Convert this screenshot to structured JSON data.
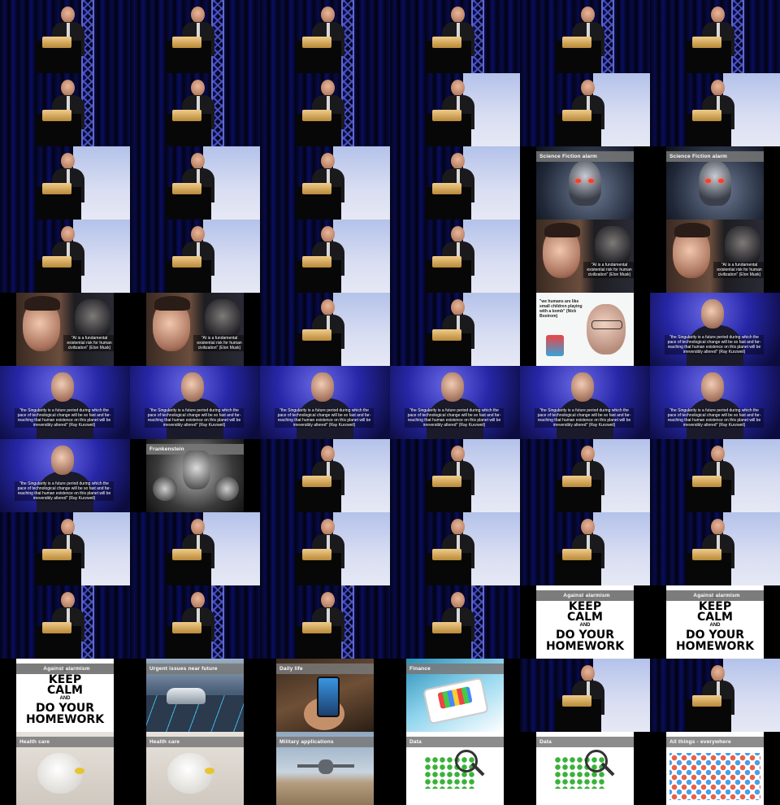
{
  "grid": {
    "columns": 6,
    "rows": 11
  },
  "captions": {
    "science_fiction": "Science Fiction alarm",
    "frankenstein": "Frankenstein",
    "against_alarmism": "Against alarmism",
    "urgent": "Urgent issues near future",
    "daily_life": "Daily life",
    "finance": "Finance",
    "health_care": "Health care",
    "military": "Military applications",
    "data": "Data",
    "all_things": "All things - everywhere",
    "keep_1": "KEEP CALM",
    "keep_and": "AND",
    "keep_2": "DO YOUR HOMEWORK",
    "musk_quote": "\"AI is a fundamental existential risk for human civilization\"",
    "musk_name": "Elon Musk",
    "bostrom_quote": "\"we humans are like small children playing with a bomb\"",
    "bostrom_name": "Nick Bostrom",
    "kurzweil_quote": "\"the Singularity is a future period during which the pace of technological change will be so fast and far-reaching that human existence on this planet will be irreversibly altered\"",
    "kurzweil_name": "Ray Kurzweil"
  },
  "cells": [
    "stage",
    "stage",
    "stage",
    "stage",
    "stage",
    "stage",
    "stage",
    "stage",
    "stage",
    "stage-screen",
    "stage-screen",
    "stage-screen",
    "stage-screen",
    "stage-screen",
    "stage-screen",
    "stage-screen",
    "robot",
    "robot",
    "stage-screen",
    "stage-screen",
    "stage-screen",
    "stage-screen",
    "musk",
    "musk",
    "musk",
    "musk",
    "stage-screen",
    "stage-screen",
    "bostrom",
    "kurz",
    "kurz",
    "kurz",
    "kurz",
    "kurz",
    "kurz",
    "kurz",
    "kurz",
    "frank",
    "stage-screen",
    "stage-screen",
    "stage-screen",
    "stage-screen",
    "stage-screen",
    "stage-screen",
    "stage-screen",
    "stage-screen",
    "stage-screen",
    "stage-screen",
    "stage",
    "stage",
    "stage",
    "stage",
    "keep",
    "keep",
    "keep",
    "car",
    "phone",
    "fin",
    "stage-screen",
    "stage-screen",
    "health",
    "health",
    "drone",
    "data",
    "data",
    "things"
  ]
}
